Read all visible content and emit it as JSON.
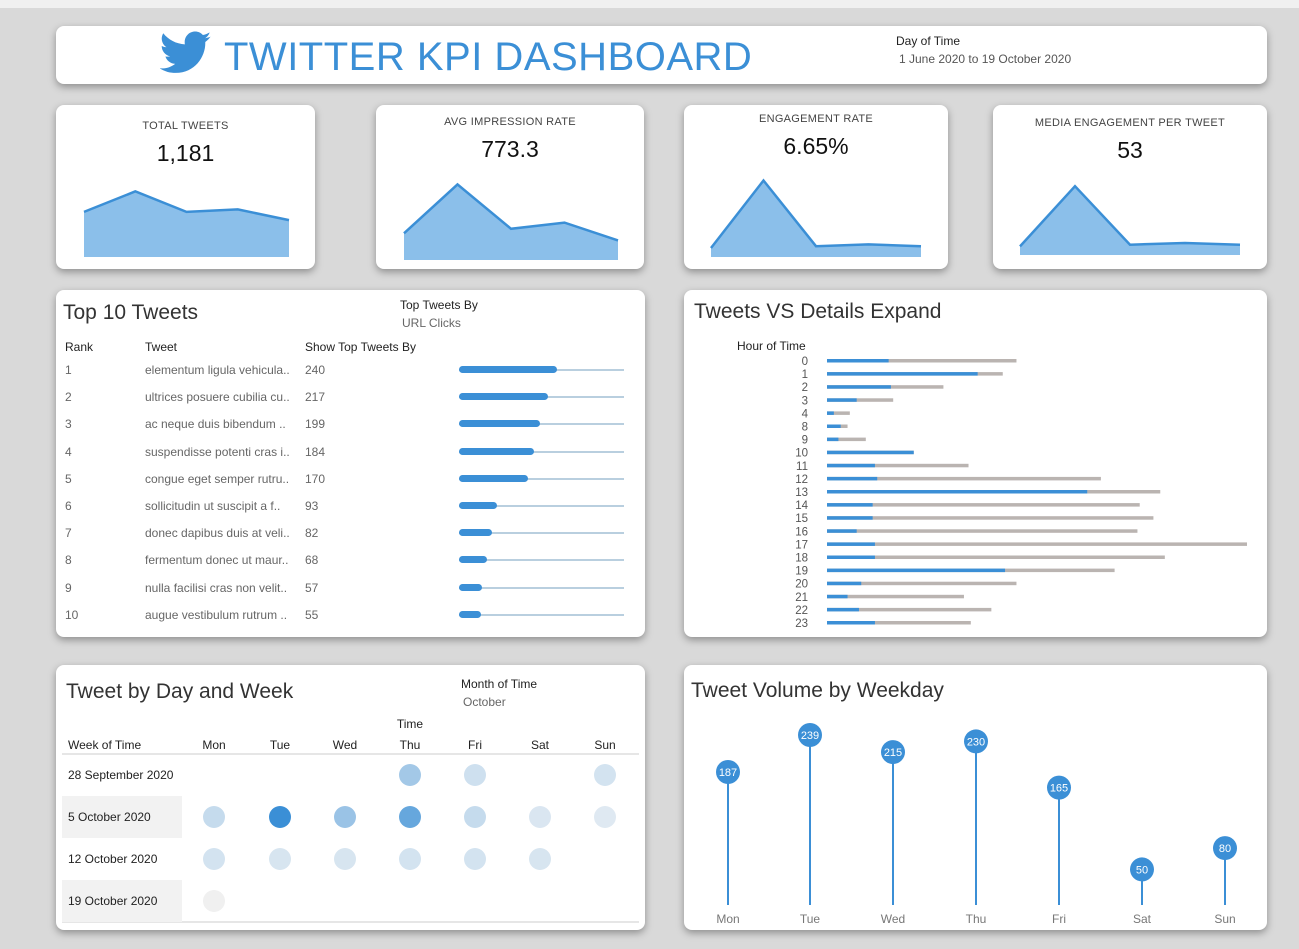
{
  "header": {
    "title": "TWITTER KPI DASHBOARD",
    "filter_label": "Day of Time",
    "filter_value": "1 June 2020 to 19 October 2020"
  },
  "colors": {
    "accent": "#3b8fd6",
    "area": "#8bbfea",
    "bar_gray": "#bab4b1",
    "track": "#b9cfdf"
  },
  "kpis": [
    {
      "label": "TOTAL TWEETS",
      "value": "1,181",
      "trend": [
        0.55,
        0.8,
        0.55,
        0.58,
        0.45
      ]
    },
    {
      "label": "AVG IMPRESSION RATE",
      "value": "773.3",
      "trend": [
        0.3,
        0.85,
        0.35,
        0.42,
        0.22
      ]
    },
    {
      "label": "ENGAGEMENT RATE",
      "value": "6.65%",
      "trend": [
        0.1,
        0.85,
        0.12,
        0.14,
        0.12
      ]
    },
    {
      "label": "MEDIA ENGAGEMENT PER TWEET",
      "value": "53",
      "trend": [
        0.1,
        0.8,
        0.12,
        0.14,
        0.12
      ]
    }
  ],
  "top_tweets": {
    "title": "Top 10 Tweets",
    "filter_label": "Top Tweets By",
    "filter_value": "URL Clicks",
    "headers": {
      "rank": "Rank",
      "tweet": "Tweet",
      "show": "Show Top Tweets By"
    },
    "rows": [
      {
        "rank": "1",
        "tweet": "elementum ligula vehicula..",
        "value": 240
      },
      {
        "rank": "2",
        "tweet": "ultrices posuere cubilia cu..",
        "value": 217
      },
      {
        "rank": "3",
        "tweet": "ac neque duis bibendum ..",
        "value": 199
      },
      {
        "rank": "4",
        "tweet": "suspendisse potenti cras i..",
        "value": 184
      },
      {
        "rank": "5",
        "tweet": "congue eget semper rutru..",
        "value": 170
      },
      {
        "rank": "6",
        "tweet": "sollicitudin ut suscipit a f..",
        "value": 93
      },
      {
        "rank": "7",
        "tweet": "donec dapibus duis at veli..",
        "value": 82
      },
      {
        "rank": "8",
        "tweet": "fermentum donec ut maur..",
        "value": 68
      },
      {
        "rank": "9",
        "tweet": "nulla facilisi cras non velit..",
        "value": 57
      },
      {
        "rank": "10",
        "tweet": "augue vestibulum rutrum ..",
        "value": 55
      }
    ]
  },
  "chart_data": [
    {
      "type": "bar",
      "title": "Tweets VS Details Expand",
      "ylabel": "Hour of Time",
      "categories": [
        "0",
        "1",
        "2",
        "3",
        "4",
        "8",
        "9",
        "10",
        "11",
        "12",
        "13",
        "14",
        "15",
        "16",
        "17",
        "18",
        "19",
        "20",
        "21",
        "22",
        "23"
      ],
      "series": [
        {
          "values": [
            27,
            66,
            28,
            13,
            3,
            6,
            5,
            38,
            21,
            22,
            114,
            20,
            20,
            13,
            21,
            21,
            78,
            15,
            9,
            14,
            21
          ]
        },
        {
          "values": [
            83,
            77,
            51,
            29,
            10,
            9,
            17,
            38,
            62,
            120,
            146,
            137,
            143,
            136,
            184,
            148,
            126,
            83,
            60,
            72,
            63
          ]
        }
      ]
    },
    {
      "type": "heatmap",
      "title": "Tweet by Day and Week",
      "filter_label": "Month of Time",
      "filter_value": "October",
      "xlabel": "Time",
      "ylabel": "Week of Time",
      "columns": [
        "Mon",
        "Tue",
        "Wed",
        "Thu",
        "Fri",
        "Sat",
        "Sun"
      ],
      "rows": [
        "28 September 2020",
        "5 October 2020",
        "12 October 2020",
        "19 October 2020"
      ],
      "values": [
        [
          null,
          null,
          null,
          0.4,
          0.15,
          null,
          0.12
        ],
        [
          0.2,
          1.0,
          0.45,
          0.75,
          0.2,
          0.08,
          0.05
        ],
        [
          0.12,
          0.1,
          0.1,
          0.12,
          0.12,
          0.1,
          null
        ],
        [
          0.02,
          null,
          null,
          null,
          null,
          null,
          null
        ]
      ]
    },
    {
      "type": "scatter",
      "title": "Tweet Volume by Weekday",
      "categories": [
        "Mon",
        "Tue",
        "Wed",
        "Thu",
        "Fri",
        "Sat",
        "Sun"
      ],
      "values": [
        187,
        239,
        215,
        230,
        165,
        50,
        80
      ]
    }
  ]
}
